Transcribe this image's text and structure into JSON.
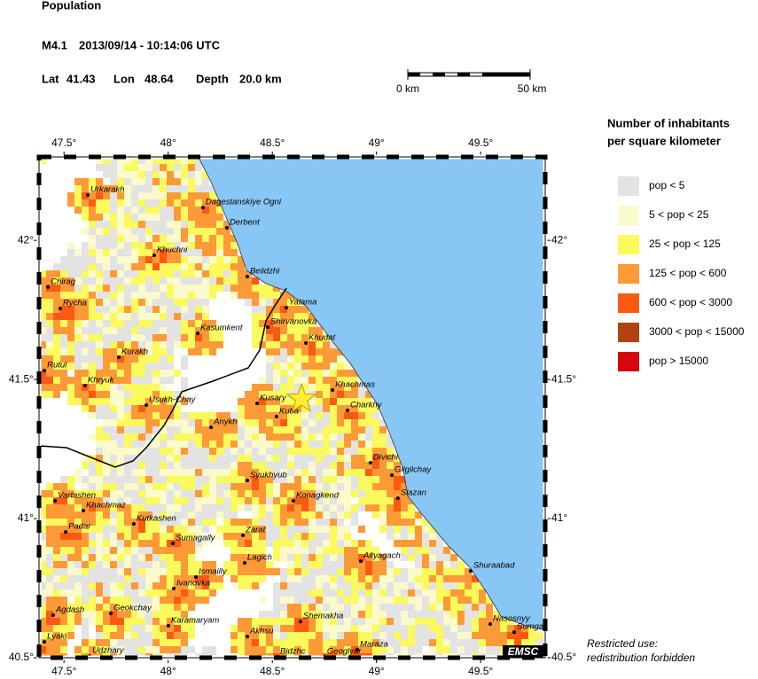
{
  "title": "Population",
  "event": {
    "magnitude": "M4.1",
    "datetime": "2013/09/14 - 10:14:06 UTC",
    "lat_label": "Lat",
    "lat": 41.43,
    "lon_label": "Lon",
    "lon": 48.64,
    "depth_label": "Depth",
    "depth": {
      "value": 20.0,
      "label": "20.0 km"
    }
  },
  "scale_bar": {
    "start": "0 km",
    "end": "50 km"
  },
  "map": {
    "xlim": [
      47.38,
      49.81
    ],
    "ylim": [
      40.5,
      42.3
    ],
    "xticks": [
      {
        "value": 47.5,
        "label": "47.5°"
      },
      {
        "value": 48,
        "label": "48°"
      },
      {
        "value": 48.5,
        "label": "48.5°"
      },
      {
        "value": 49,
        "label": "49°"
      },
      {
        "value": 49.5,
        "label": "49.5°"
      }
    ],
    "yticks": [
      {
        "value": 40.5,
        "label": "40.5°"
      },
      {
        "value": 41,
        "label": "41°"
      },
      {
        "value": 41.5,
        "label": "41.5°"
      },
      {
        "value": 42,
        "label": "42°"
      }
    ],
    "sea_color": "#87c6f5",
    "cities": [
      {
        "name": "Urkarakh",
        "lon": 47.614,
        "lat": 42.163
      },
      {
        "name": "Dagestanskiye Ogni",
        "lon": 48.167,
        "lat": 42.118
      },
      {
        "name": "Derbent",
        "lon": 48.282,
        "lat": 42.045
      },
      {
        "name": "Khuchni",
        "lon": 47.933,
        "lat": 41.946
      },
      {
        "name": "Belidzhi",
        "lon": 48.38,
        "lat": 41.87
      },
      {
        "name": "Chirag",
        "lon": 47.423,
        "lat": 41.832
      },
      {
        "name": "Rycha",
        "lon": 47.482,
        "lat": 41.755
      },
      {
        "name": "Yalama",
        "lon": 48.567,
        "lat": 41.758
      },
      {
        "name": "Shirvanovka",
        "lon": 48.478,
        "lat": 41.688
      },
      {
        "name": "Kasumkent",
        "lon": 48.142,
        "lat": 41.666
      },
      {
        "name": "Khudat",
        "lon": 48.661,
        "lat": 41.631
      },
      {
        "name": "Kurakh",
        "lon": 47.763,
        "lat": 41.58
      },
      {
        "name": "Rutul",
        "lon": 47.406,
        "lat": 41.532
      },
      {
        "name": "Khryuk",
        "lon": 47.601,
        "lat": 41.478
      },
      {
        "name": "Khachmas",
        "lon": 48.789,
        "lat": 41.462
      },
      {
        "name": "Usukh-Chay",
        "lon": 47.895,
        "lat": 41.408
      },
      {
        "name": "Kusary",
        "lon": 48.427,
        "lat": 41.414
      },
      {
        "name": "Charkhy",
        "lon": 48.861,
        "lat": 41.389
      },
      {
        "name": "Kuba",
        "lon": 48.52,
        "lat": 41.367
      },
      {
        "name": "Anykh",
        "lon": 48.206,
        "lat": 41.328
      },
      {
        "name": "Divichi",
        "lon": 48.971,
        "lat": 41.201
      },
      {
        "name": "Gilgilchay",
        "lon": 49.074,
        "lat": 41.156
      },
      {
        "name": "Syukhyub",
        "lon": 48.38,
        "lat": 41.137
      },
      {
        "name": "Siazan",
        "lon": 49.103,
        "lat": 41.073
      },
      {
        "name": "Konagkend",
        "lon": 48.601,
        "lat": 41.064
      },
      {
        "name": "Vartashen",
        "lon": 47.457,
        "lat": 41.064
      },
      {
        "name": "Khachmaz",
        "lon": 47.593,
        "lat": 41.029
      },
      {
        "name": "Kutkashen",
        "lon": 47.835,
        "lat": 40.981
      },
      {
        "name": "Padar",
        "lon": 47.508,
        "lat": 40.952
      },
      {
        "name": "Zarat",
        "lon": 48.359,
        "lat": 40.94
      },
      {
        "name": "Sumagally",
        "lon": 48.023,
        "lat": 40.911
      },
      {
        "name": "Lagich",
        "lon": 48.367,
        "lat": 40.841
      },
      {
        "name": "Altyagach",
        "lon": 48.925,
        "lat": 40.847
      },
      {
        "name": "Shuraabad",
        "lon": 49.452,
        "lat": 40.812
      },
      {
        "name": "Ismailly",
        "lon": 48.133,
        "lat": 40.79
      },
      {
        "name": "Ivanovka",
        "lon": 48.027,
        "lat": 40.749
      },
      {
        "name": "Agdash",
        "lon": 47.448,
        "lat": 40.653
      },
      {
        "name": "Geokchay",
        "lon": 47.725,
        "lat": 40.659
      },
      {
        "name": "Karamaryam",
        "lon": 48.001,
        "lat": 40.615
      },
      {
        "name": "Shemakha",
        "lon": 48.635,
        "lat": 40.63
      },
      {
        "name": "Nasosnyy",
        "lon": 49.546,
        "lat": 40.621
      },
      {
        "name": "Sumga",
        "lon": 49.661,
        "lat": 40.592
      },
      {
        "name": "Akhsu",
        "lon": 48.38,
        "lat": 40.576
      },
      {
        "name": "Lyaki",
        "lon": 47.406,
        "lat": 40.557
      },
      {
        "name": "Maraza",
        "lon": 48.908,
        "lat": 40.529
      },
      {
        "name": "Udzhary",
        "lon": 47.623,
        "lat": 40.506
      },
      {
        "name": "Bidzhc",
        "lon": 48.525,
        "lat": 40.503
      },
      {
        "name": "Geoglyar",
        "lon": 48.75,
        "lat": 40.503
      }
    ],
    "logo": "EMSC"
  },
  "legend": {
    "title": [
      "Number of inhabitants",
      "per square kilometer"
    ],
    "items": [
      {
        "label": "pop < 5",
        "color": "#e3e3e3"
      },
      {
        "label": "5 < pop < 25",
        "color": "#fafacc"
      },
      {
        "label": "25 < pop < 125",
        "color": "#fafa5c"
      },
      {
        "label": "125 < pop < 600",
        "color": "#fd9a38"
      },
      {
        "label": "600 < pop < 3000",
        "color": "#fb5a12"
      },
      {
        "label": "3000 < pop < 15000",
        "color": "#b04410"
      },
      {
        "label": "pop > 15000",
        "color": "#d4080e"
      }
    ]
  },
  "footnote": [
    "Restricted use:",
    "redistribution forbidden"
  ]
}
